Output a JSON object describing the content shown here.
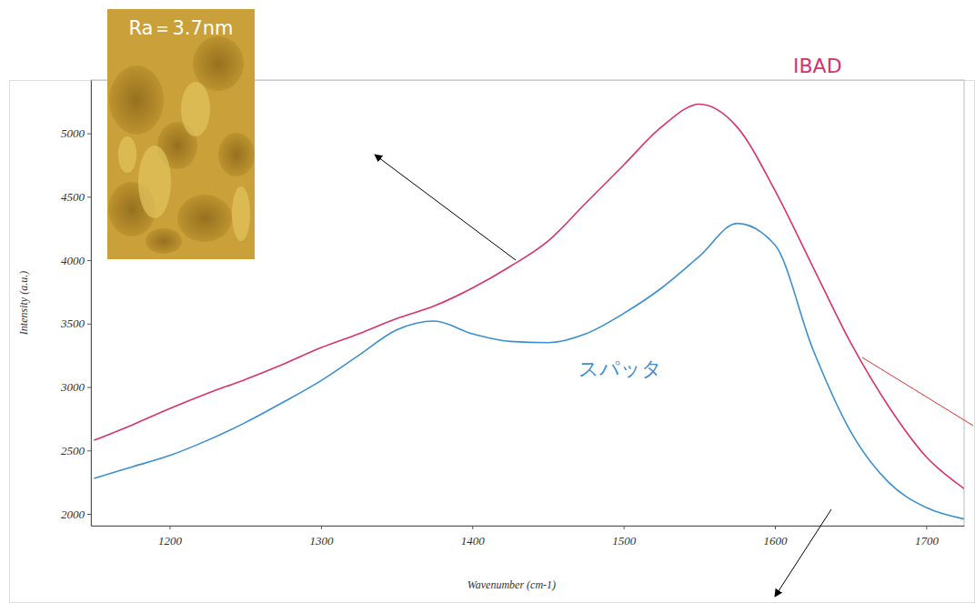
{
  "chart_data": {
    "type": "line",
    "x_label": "Wavenumber (cm-1)",
    "y_label": "Intensity (a.u.)",
    "xlim": [
      1148,
      1725
    ],
    "ylim": [
      1907,
      5420
    ],
    "xticks": [
      1200,
      1300,
      1400,
      1500,
      1600,
      1700
    ],
    "yticks": [
      2000,
      2500,
      3000,
      3500,
      4000,
      4500,
      5000
    ],
    "grid": false,
    "x": [
      1150,
      1175,
      1200,
      1225,
      1250,
      1275,
      1300,
      1325,
      1350,
      1375,
      1400,
      1425,
      1450,
      1475,
      1500,
      1525,
      1550,
      1575,
      1600,
      1625,
      1650,
      1675,
      1700,
      1725
    ],
    "series": [
      {
        "name": "IBAD",
        "color": "#d6336f",
        "values": [
          2580,
          2700,
          2830,
          2950,
          3060,
          3180,
          3310,
          3420,
          3540,
          3640,
          3780,
          3950,
          4150,
          4450,
          4750,
          5050,
          5230,
          5050,
          4550,
          3950,
          3350,
          2850,
          2450,
          2200
        ]
      },
      {
        "name": "スパッタ",
        "color": "#3c8fd0",
        "values": [
          2280,
          2370,
          2460,
          2580,
          2720,
          2880,
          3050,
          3250,
          3450,
          3520,
          3420,
          3360,
          3350,
          3420,
          3580,
          3780,
          4030,
          4290,
          4120,
          3300,
          2650,
          2250,
          2050,
          1960
        ]
      }
    ],
    "annotations": [
      {
        "text": "Ra＝3.7nm"
      }
    ]
  }
}
